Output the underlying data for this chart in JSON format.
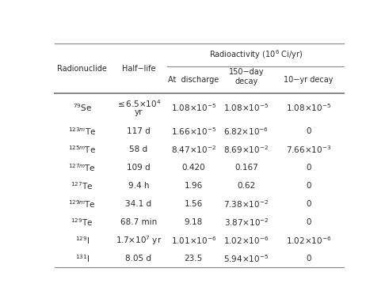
{
  "bg_color": "#ffffff",
  "text_color": "#2a2a2a",
  "line_color": "#888888",
  "rows": [
    {
      "nuclide": "$^{79}$Se",
      "halflife_line1": "$\\leq$6.5×10$^{4}$",
      "halflife_line2": "yr",
      "at_discharge": "1.08×10$^{-5}$",
      "decay_150": "1.08×10$^{-5}$",
      "decay_10yr": "1.08×10$^{-5}$",
      "twoline": true
    },
    {
      "nuclide": "$^{123m}$Te",
      "halflife_line1": "117 d",
      "halflife_line2": "",
      "at_discharge": "1.66×10$^{-5}$",
      "decay_150": "6.82×10$^{-6}$",
      "decay_10yr": "0",
      "twoline": false
    },
    {
      "nuclide": "$^{125m}$Te",
      "halflife_line1": "58 d",
      "halflife_line2": "",
      "at_discharge": "8.47×10$^{-2}$",
      "decay_150": "8.69×10$^{-2}$",
      "decay_10yr": "7.66×10$^{-3}$",
      "twoline": false
    },
    {
      "nuclide": "$^{127m}$Te",
      "halflife_line1": "109 d",
      "halflife_line2": "",
      "at_discharge": "0.420",
      "decay_150": "0.167",
      "decay_10yr": "0",
      "twoline": false
    },
    {
      "nuclide": "$^{127}$Te",
      "halflife_line1": "9.4 h",
      "halflife_line2": "",
      "at_discharge": "1.96",
      "decay_150": "0.62",
      "decay_10yr": "0",
      "twoline": false
    },
    {
      "nuclide": "$^{129m}$Te",
      "halflife_line1": "34.1 d",
      "halflife_line2": "",
      "at_discharge": "1.56",
      "decay_150": "7.38×10$^{-2}$",
      "decay_10yr": "0",
      "twoline": false
    },
    {
      "nuclide": "$^{129}$Te",
      "halflife_line1": "68.7 min",
      "halflife_line2": "",
      "at_discharge": "9.18",
      "decay_150": "3.87×10$^{-2}$",
      "decay_10yr": "0",
      "twoline": false
    },
    {
      "nuclide": "$^{129}$I",
      "halflife_line1": "1.7×10$^{7}$ yr",
      "halflife_line2": "",
      "at_discharge": "1.01×10$^{-6}$",
      "decay_150": "1.02×10$^{-6}$",
      "decay_10yr": "1.02×10$^{-6}$",
      "twoline": false
    },
    {
      "nuclide": "$^{131}$I",
      "halflife_line1": "8.05 d",
      "halflife_line2": "",
      "at_discharge": "23.5",
      "decay_150": "5.94×10$^{-5}$",
      "decay_10yr": "0",
      "twoline": false
    }
  ]
}
